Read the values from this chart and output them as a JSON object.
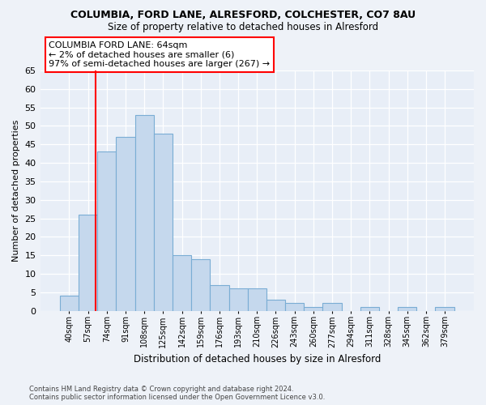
{
  "title1": "COLUMBIA, FORD LANE, ALRESFORD, COLCHESTER, CO7 8AU",
  "title2": "Size of property relative to detached houses in Alresford",
  "xlabel": "Distribution of detached houses by size in Alresford",
  "ylabel": "Number of detached properties",
  "bar_values": [
    4,
    26,
    43,
    47,
    53,
    48,
    15,
    14,
    7,
    6,
    6,
    3,
    2,
    1,
    2,
    0,
    1,
    0,
    1,
    0,
    1
  ],
  "bar_labels": [
    "40sqm",
    "57sqm",
    "74sqm",
    "91sqm",
    "108sqm",
    "125sqm",
    "142sqm",
    "159sqm",
    "176sqm",
    "193sqm",
    "210sqm",
    "226sqm",
    "243sqm",
    "260sqm",
    "277sqm",
    "294sqm",
    "311sqm",
    "328sqm",
    "345sqm",
    "362sqm",
    "379sqm"
  ],
  "bar_color": "#c5d8ed",
  "bar_edge_color": "#7aadd4",
  "annotation_text": "COLUMBIA FORD LANE: 64sqm\n← 2% of detached houses are smaller (6)\n97% of semi-detached houses are larger (267) →",
  "annotation_box_color": "white",
  "annotation_box_edge_color": "red",
  "line_color": "red",
  "ylim": [
    0,
    65
  ],
  "yticks": [
    0,
    5,
    10,
    15,
    20,
    25,
    30,
    35,
    40,
    45,
    50,
    55,
    60,
    65
  ],
  "footer": "Contains HM Land Registry data © Crown copyright and database right 2024.\nContains public sector information licensed under the Open Government Licence v3.0.",
  "background_color": "#eef2f8",
  "plot_background": "#e8eef7"
}
